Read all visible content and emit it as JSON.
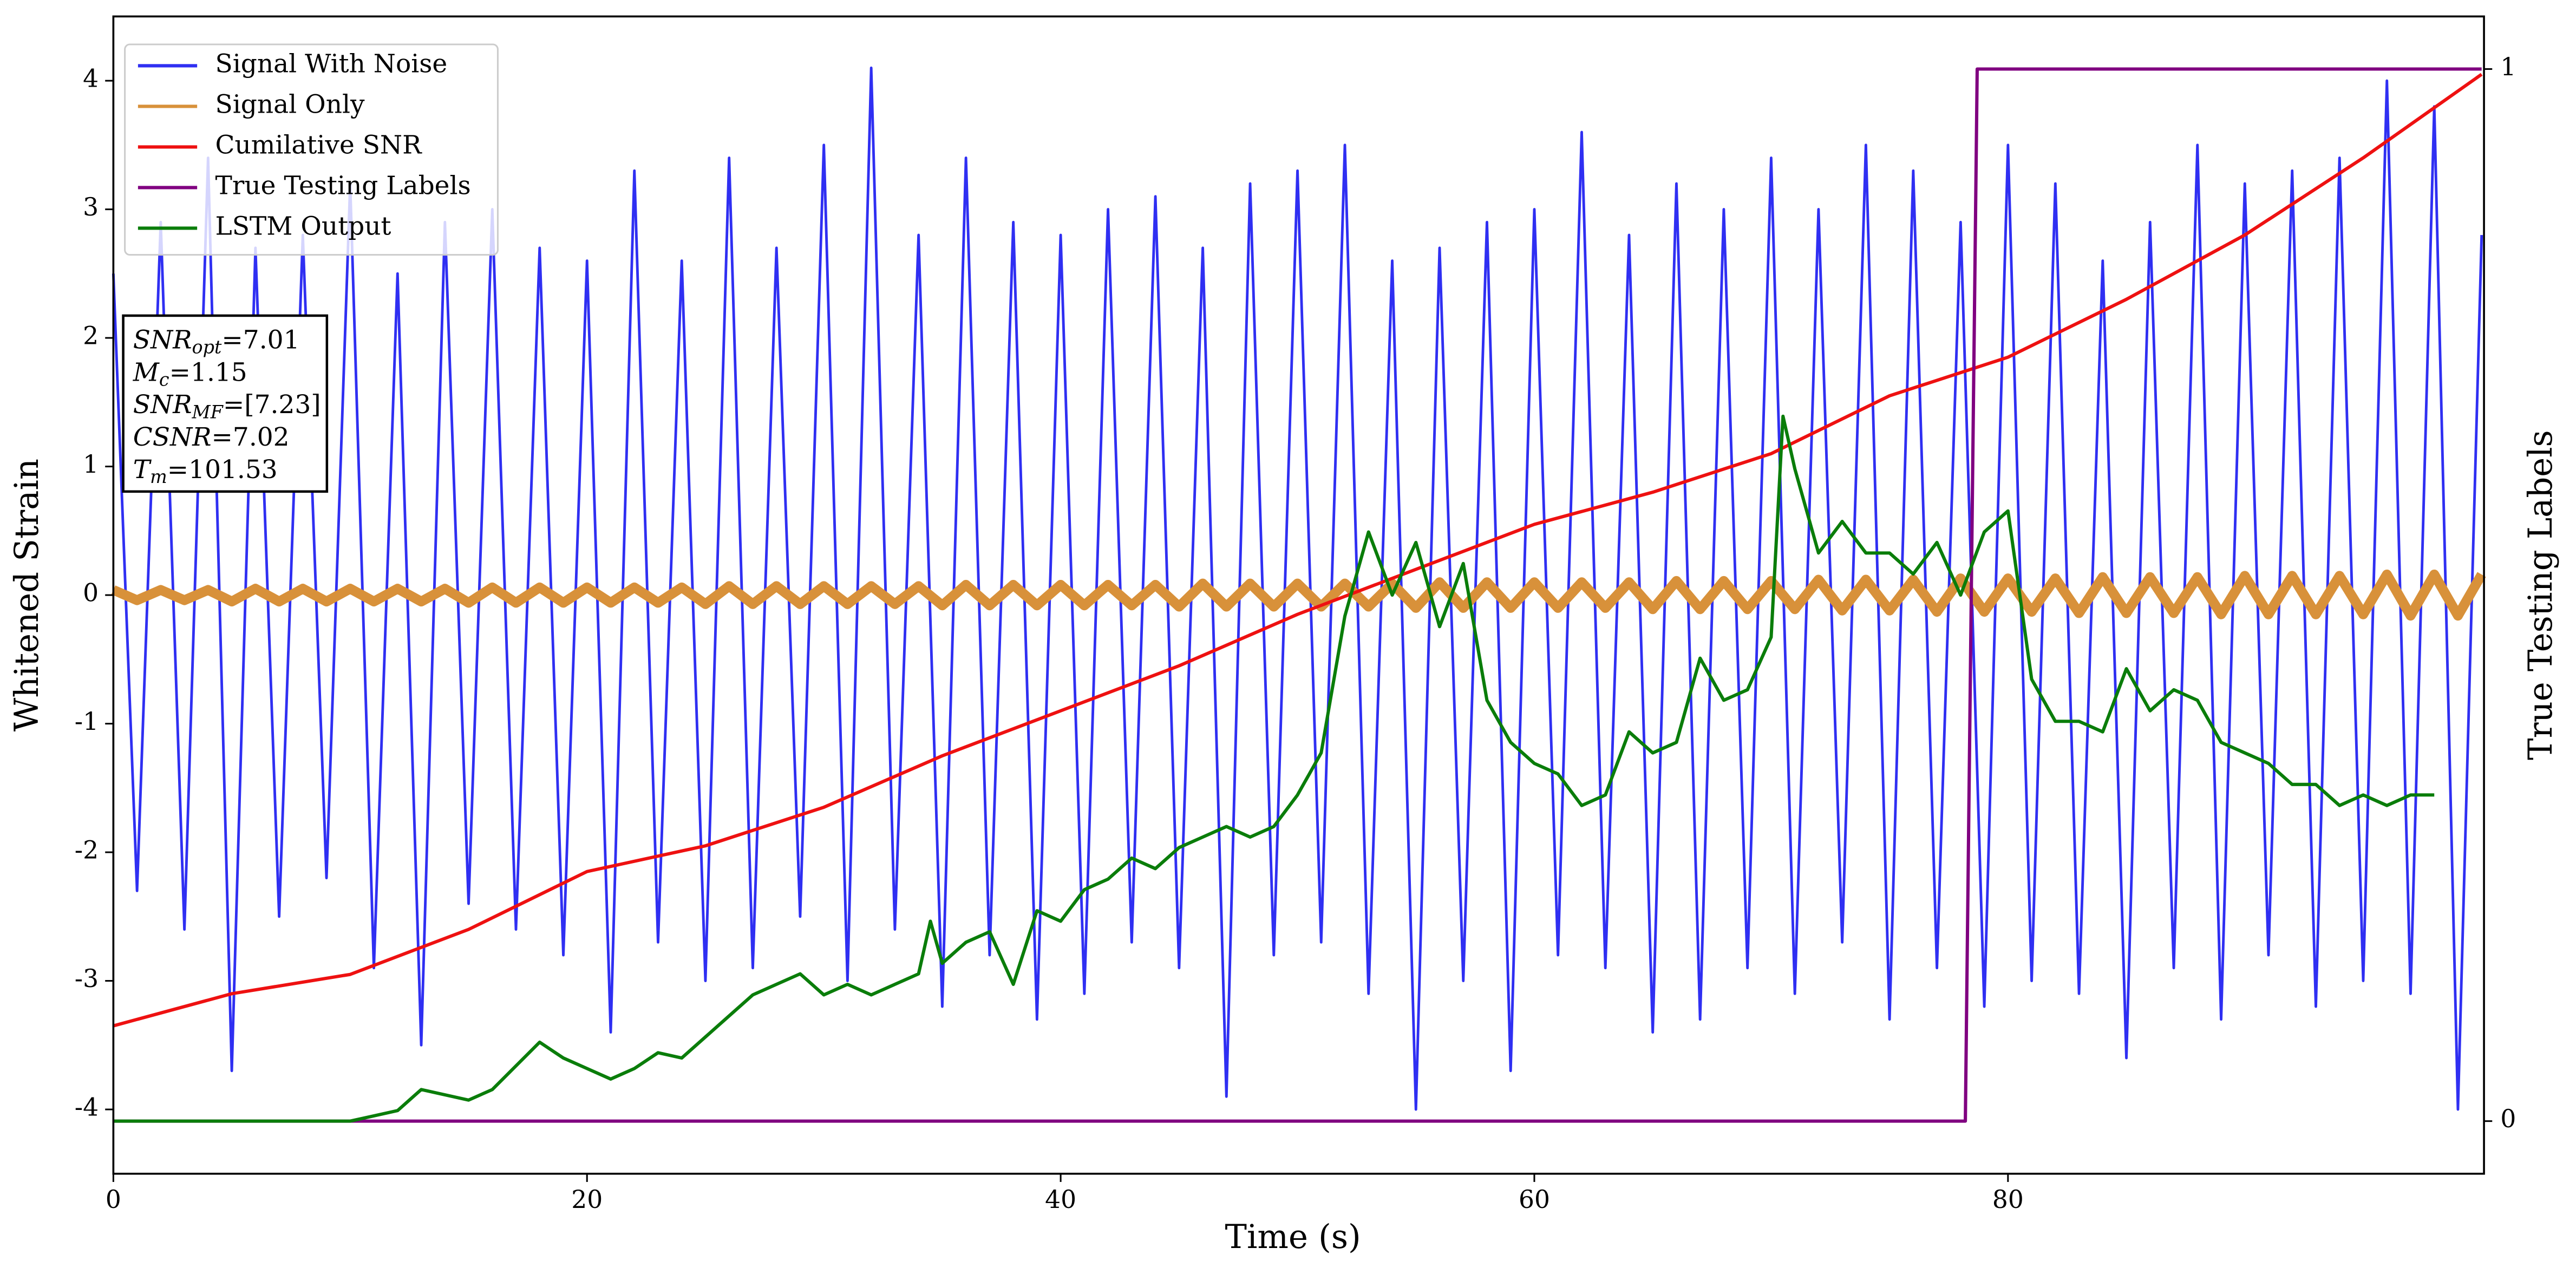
{
  "chart_data": {
    "type": "line",
    "xlabel": "Time (s)",
    "ylabel": "Whitened Strain",
    "y2label": "True Testing Labels",
    "xlim": [
      0,
      100.1
    ],
    "ylim": [
      -4.5,
      4.5
    ],
    "y2lim": [
      -0.05,
      1.05
    ],
    "xticks": [
      0,
      20,
      40,
      60,
      80
    ],
    "yticks": [
      -4,
      -3,
      -2,
      -1,
      0,
      1,
      2,
      3,
      4
    ],
    "y2ticks": [
      0,
      1
    ],
    "legend": "upper left",
    "annotations": [
      [
        "SNR",
        "opt",
        "=7.01"
      ],
      [
        "M",
        "c",
        "=1.15"
      ],
      [
        "SNR",
        "MF",
        "=[7.23]"
      ],
      [
        "CSNR",
        "=7.02"
      ],
      [
        "T",
        "m",
        "=101.53"
      ]
    ],
    "series": [
      {
        "name": "Signal With Noise",
        "color": "#2f2ff2",
        "width": 1.6,
        "x": [
          0,
          1,
          2,
          3,
          4,
          5,
          6,
          7,
          8,
          9,
          10,
          11,
          12,
          13,
          14,
          15,
          16,
          17,
          18,
          19,
          20,
          21,
          22,
          23,
          24,
          25,
          26,
          27,
          28,
          29,
          30,
          31,
          32,
          33,
          34,
          35,
          36,
          37,
          38,
          39,
          40,
          41,
          42,
          43,
          44,
          45,
          46,
          47,
          48,
          49,
          50,
          51,
          52,
          53,
          54,
          55,
          56,
          57,
          58,
          59,
          60,
          61,
          62,
          63,
          64,
          65,
          66,
          67,
          68,
          69,
          70,
          71,
          72,
          73,
          74,
          75,
          76,
          77,
          78,
          79,
          80,
          81,
          82,
          83,
          84,
          85,
          86,
          87,
          88,
          89,
          90,
          91,
          92,
          93,
          94,
          95,
          96,
          97,
          98,
          99,
          100
        ],
        "values": [
          2.5,
          -2.3,
          2.9,
          -2.6,
          3.4,
          -3.7,
          2.7,
          -2.5,
          2.8,
          -2.2,
          3.2,
          -2.9,
          2.5,
          -3.5,
          2.9,
          -2.4,
          3.0,
          -2.6,
          2.7,
          -2.8,
          2.6,
          -3.4,
          3.3,
          -2.7,
          2.6,
          -3.0,
          3.4,
          -2.9,
          2.7,
          -2.5,
          3.5,
          -3.0,
          4.1,
          -2.6,
          2.8,
          -3.2,
          3.4,
          -2.8,
          2.9,
          -3.3,
          2.8,
          -3.1,
          3.0,
          -2.7,
          3.1,
          -2.9,
          2.7,
          -3.9,
          3.2,
          -2.8,
          3.3,
          -2.7,
          3.5,
          -3.1,
          2.6,
          -4.0,
          2.7,
          -3.0,
          2.9,
          -3.7,
          3.0,
          -2.8,
          3.6,
          -2.9,
          2.8,
          -3.4,
          3.2,
          -3.3,
          3.0,
          -2.9,
          3.4,
          -3.1,
          3.0,
          -2.7,
          3.5,
          -3.3,
          3.3,
          -2.9,
          2.9,
          -3.2,
          3.5,
          -3.0,
          3.2,
          -3.1,
          2.6,
          -3.6,
          2.9,
          -2.9,
          3.5,
          -3.3,
          3.2,
          -2.8,
          3.3,
          -3.2,
          3.4,
          -3.0,
          4.0,
          -3.1,
          3.8,
          -4.0,
          2.8
        ]
      },
      {
        "name": "Signal Only",
        "color": "#d8913a",
        "width": 6,
        "x": [
          0,
          1,
          2,
          3,
          4,
          5,
          6,
          7,
          8,
          9,
          10,
          11,
          12,
          13,
          14,
          15,
          16,
          17,
          18,
          19,
          20,
          21,
          22,
          23,
          24,
          25,
          26,
          27,
          28,
          29,
          30,
          31,
          32,
          33,
          34,
          35,
          36,
          37,
          38,
          39,
          40,
          41,
          42,
          43,
          44,
          45,
          46,
          47,
          48,
          49,
          50,
          51,
          52,
          53,
          54,
          55,
          56,
          57,
          58,
          59,
          60,
          61,
          62,
          63,
          64,
          65,
          66,
          67,
          68,
          69,
          70,
          71,
          72,
          73,
          74,
          75,
          76,
          77,
          78,
          79,
          80,
          81,
          82,
          83,
          84,
          85,
          86,
          87,
          88,
          89,
          90,
          91,
          92,
          93,
          94,
          95,
          96,
          97,
          98,
          99,
          100
        ],
        "values": [
          0.04,
          -0.04,
          0.04,
          -0.04,
          0.04,
          -0.05,
          0.05,
          -0.05,
          0.05,
          -0.05,
          0.05,
          -0.05,
          0.05,
          -0.05,
          0.05,
          -0.06,
          0.06,
          -0.06,
          0.06,
          -0.06,
          0.06,
          -0.06,
          0.06,
          -0.06,
          0.06,
          -0.07,
          0.07,
          -0.07,
          0.07,
          -0.07,
          0.07,
          -0.07,
          0.07,
          -0.07,
          0.07,
          -0.08,
          0.08,
          -0.08,
          0.08,
          -0.08,
          0.08,
          -0.08,
          0.08,
          -0.08,
          0.08,
          -0.09,
          0.09,
          -0.09,
          0.09,
          -0.09,
          0.09,
          -0.09,
          0.09,
          -0.09,
          0.09,
          -0.1,
          0.1,
          -0.1,
          0.1,
          -0.1,
          0.1,
          -0.1,
          0.1,
          -0.1,
          0.1,
          -0.11,
          0.11,
          -0.11,
          0.11,
          -0.11,
          0.11,
          -0.11,
          0.12,
          -0.12,
          0.12,
          -0.12,
          0.12,
          -0.13,
          0.13,
          -0.13,
          0.13,
          -0.13,
          0.13,
          -0.14,
          0.14,
          -0.14,
          0.14,
          -0.14,
          0.14,
          -0.15,
          0.15,
          -0.15,
          0.15,
          -0.15,
          0.15,
          -0.15,
          0.16,
          -0.16,
          0.16,
          -0.16,
          0.16
        ]
      },
      {
        "name": "Cumilative SNR",
        "color": "#ee1111",
        "width": 2,
        "x": [
          0,
          5,
          10,
          15,
          20,
          25,
          30,
          35,
          40,
          45,
          50,
          55,
          60,
          65,
          70,
          75,
          80,
          85,
          90,
          95,
          100
        ],
        "values": [
          -3.35,
          -3.1,
          -2.95,
          -2.6,
          -2.15,
          -1.95,
          -1.65,
          -1.25,
          -0.9,
          -0.55,
          -0.15,
          0.2,
          0.55,
          0.8,
          1.1,
          1.55,
          1.85,
          2.3,
          2.8,
          3.4,
          4.05
        ]
      },
      {
        "name": "True Testing Labels",
        "color": "#800080",
        "width": 2,
        "axis": "y2",
        "x": [
          0,
          78.2,
          78.7,
          100
        ],
        "values": [
          0,
          0,
          1,
          1
        ]
      },
      {
        "name": "LSTM Output",
        "color": "#0a7d0a",
        "width": 2,
        "axis": "y2",
        "x": [
          0,
          10,
          11,
          12,
          13,
          15,
          16,
          18,
          19,
          20,
          21,
          22,
          23,
          24,
          25,
          26,
          27,
          28,
          29,
          30,
          31,
          32,
          33,
          34,
          34.5,
          35,
          36,
          37,
          38,
          39,
          40,
          41,
          42,
          43,
          44,
          45,
          46,
          47,
          48,
          49,
          50,
          51,
          52,
          53,
          54,
          55,
          56,
          57,
          58,
          59,
          60,
          61,
          62,
          63,
          64,
          65,
          66,
          67,
          68,
          69,
          70,
          70.5,
          71,
          72,
          73,
          74,
          75,
          76,
          77,
          78,
          79,
          80,
          81,
          82,
          83,
          84,
          85,
          86,
          87,
          88,
          89,
          90,
          91,
          92,
          93,
          94,
          95,
          96,
          97,
          98
        ],
        "values": [
          0,
          0,
          0.005,
          0.01,
          0.03,
          0.02,
          0.03,
          0.075,
          0.06,
          0.05,
          0.04,
          0.05,
          0.065,
          0.06,
          0.08,
          0.1,
          0.12,
          0.13,
          0.14,
          0.12,
          0.13,
          0.12,
          0.13,
          0.14,
          0.19,
          0.15,
          0.17,
          0.18,
          0.13,
          0.2,
          0.19,
          0.22,
          0.23,
          0.25,
          0.24,
          0.26,
          0.27,
          0.28,
          0.27,
          0.28,
          0.31,
          0.35,
          0.48,
          0.56,
          0.5,
          0.55,
          0.47,
          0.53,
          0.4,
          0.36,
          0.34,
          0.33,
          0.3,
          0.31,
          0.37,
          0.35,
          0.36,
          0.44,
          0.4,
          0.41,
          0.46,
          0.67,
          0.62,
          0.54,
          0.57,
          0.54,
          0.54,
          0.52,
          0.55,
          0.5,
          0.56,
          0.58,
          0.42,
          0.38,
          0.38,
          0.37,
          0.43,
          0.39,
          0.41,
          0.4,
          0.36,
          0.35,
          0.34,
          0.32,
          0.32,
          0.3,
          0.31,
          0.3,
          0.31,
          0.31
        ]
      }
    ]
  }
}
